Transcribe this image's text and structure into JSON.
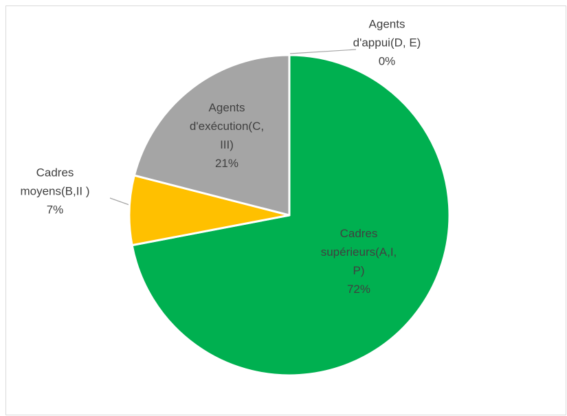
{
  "chart_data": {
    "type": "pie",
    "categories": [
      "Cadres\nsupérieurs(A,I,\nP)",
      "Cadres\nmoyens(B,II )",
      "Agents\nd'exécution(C,\nIII)",
      "Agents\nd'appui(D, E)"
    ],
    "values": [
      72,
      7,
      21,
      0
    ],
    "value_labels": [
      "72%",
      "7%",
      "21%",
      "0%"
    ],
    "colors": [
      "#00b050",
      "#ffc000",
      "#a5a5a5",
      "#4472c4"
    ]
  }
}
